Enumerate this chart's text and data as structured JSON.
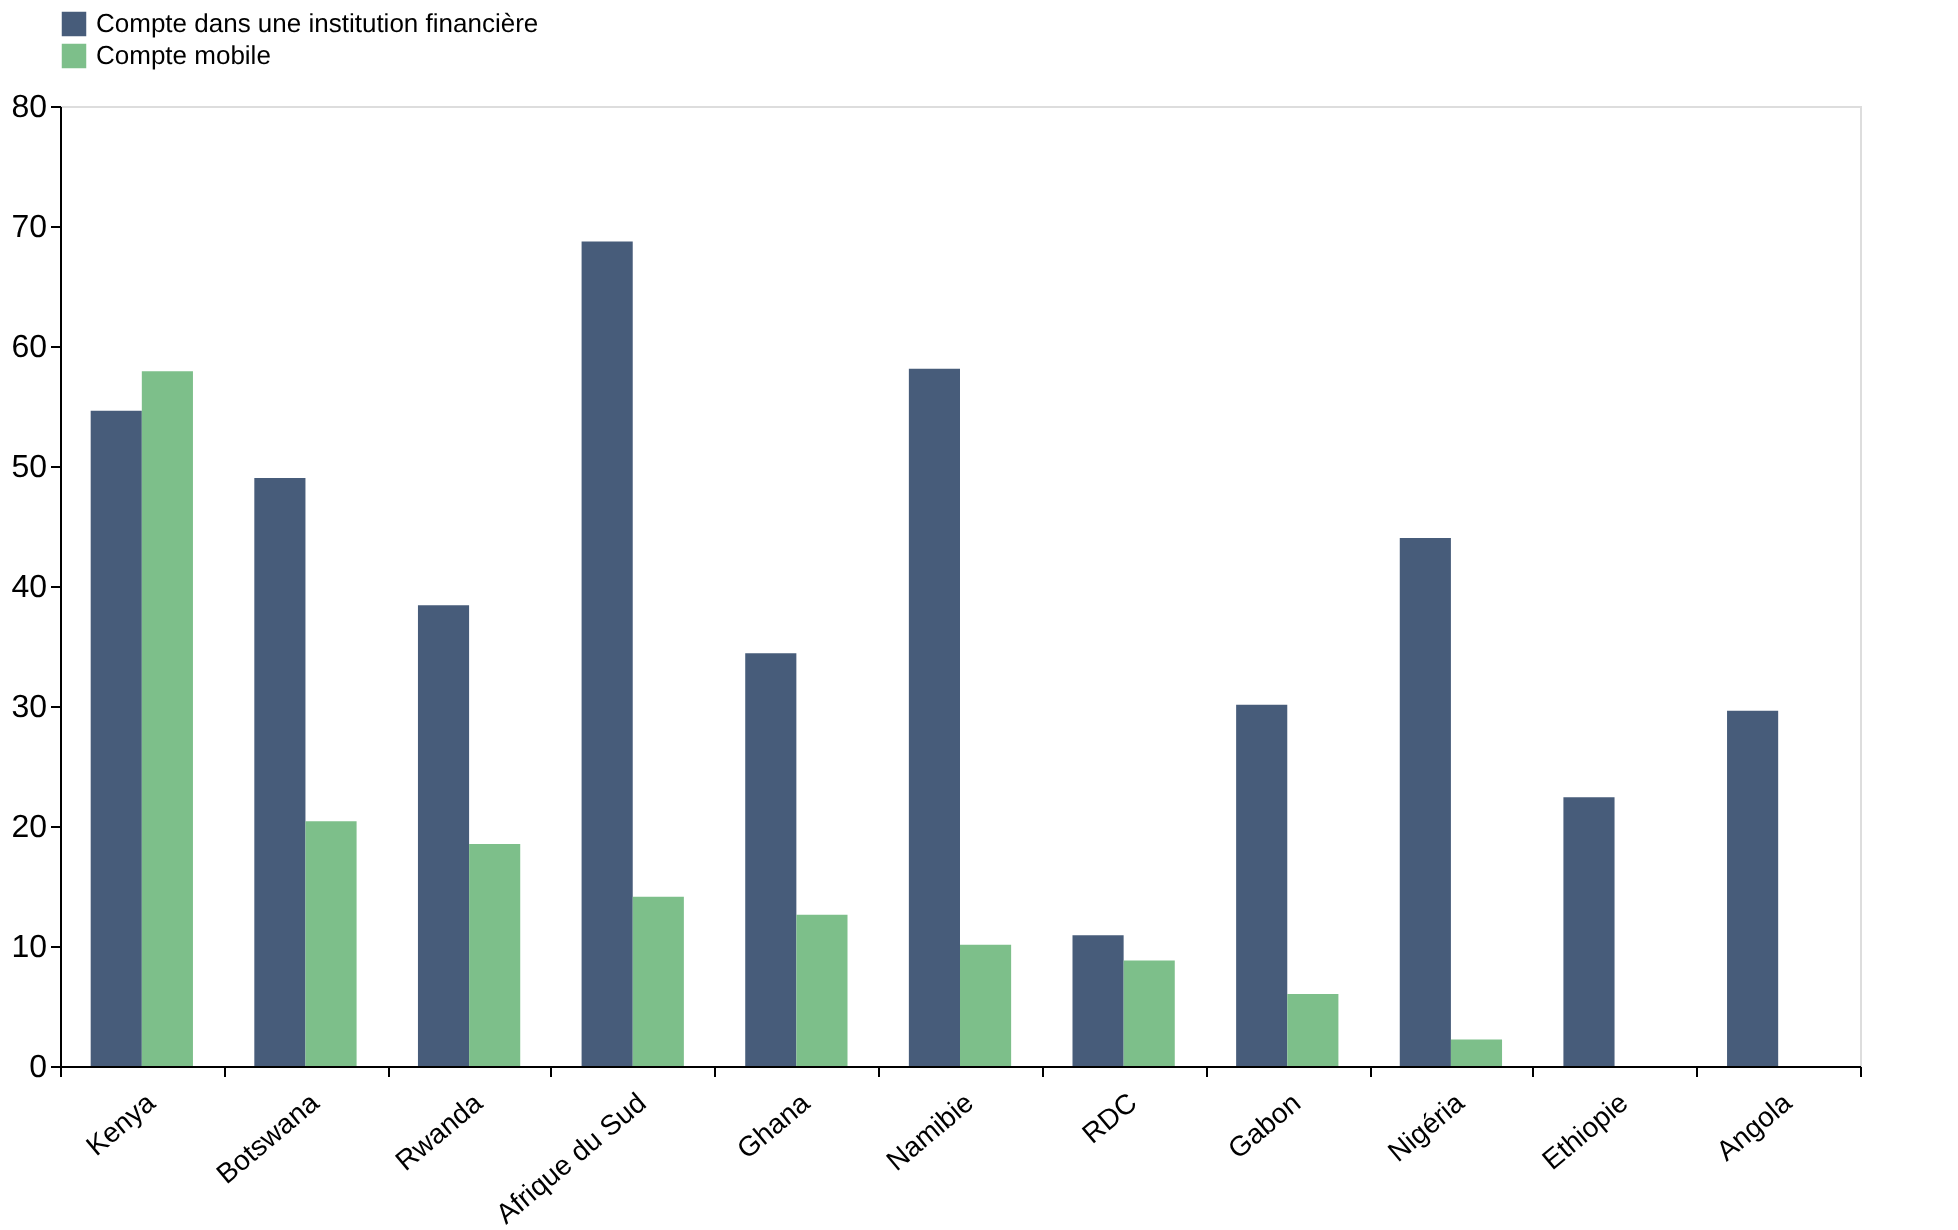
{
  "chart_data": {
    "type": "bar",
    "categories": [
      "Kenya",
      "Botswana",
      "Rwanda",
      "Afrique du Sud",
      "Ghana",
      "Namibie",
      "RDC",
      "Gabon",
      "Nigéria",
      "Ethiopie",
      "Angola"
    ],
    "series": [
      {
        "name": "Compte dans une institution financière",
        "color": "#475c7a",
        "values": [
          54.6,
          49.0,
          38.4,
          68.7,
          34.4,
          58.1,
          10.9,
          30.1,
          44.0,
          22.4,
          29.6
        ]
      },
      {
        "name": "Compte mobile",
        "color": "#7dbf8a",
        "values": [
          57.9,
          20.4,
          18.5,
          14.1,
          12.6,
          10.1,
          8.8,
          6.0,
          2.2,
          null,
          null
        ]
      }
    ],
    "ylim": [
      0,
      80
    ],
    "yticks": [
      0,
      10,
      20,
      30,
      40,
      50,
      60,
      70,
      80
    ],
    "grid": false,
    "legend": "top"
  }
}
